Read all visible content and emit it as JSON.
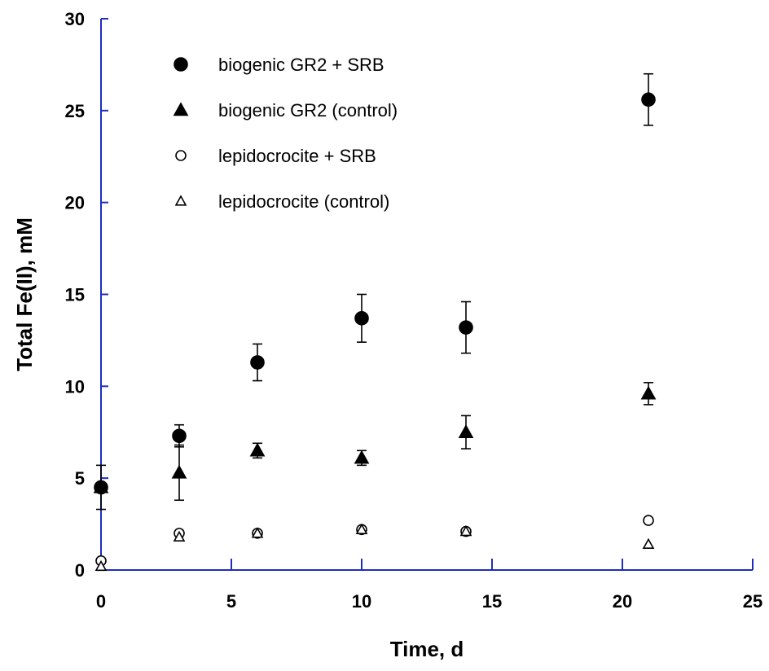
{
  "chart_data": {
    "type": "scatter",
    "xlabel": "Time, d",
    "ylabel": "Total Fe(II), mM",
    "xlim": [
      0,
      25
    ],
    "ylim": [
      0,
      30
    ],
    "xticks": [
      0,
      5,
      10,
      15,
      20,
      25
    ],
    "yticks": [
      0,
      5,
      10,
      15,
      20,
      25,
      30
    ],
    "grid": false,
    "legend_position": "top-left",
    "series": [
      {
        "name": "biogenic GR2 + SRB",
        "marker": "circle-filled",
        "points": [
          {
            "x": 0,
            "y": 4.5,
            "err": 1.2
          },
          {
            "x": 3,
            "y": 7.3,
            "err": 0.6
          },
          {
            "x": 6,
            "y": 11.3,
            "err": 1.0
          },
          {
            "x": 10,
            "y": 13.7,
            "err": 1.3
          },
          {
            "x": 14,
            "y": 13.2,
            "err": 1.4
          },
          {
            "x": 21,
            "y": 25.6,
            "err": 1.4
          }
        ]
      },
      {
        "name": "biogenic GR2 (control)",
        "marker": "triangle-filled",
        "points": [
          {
            "x": 0,
            "y": 4.5,
            "err": 0
          },
          {
            "x": 3,
            "y": 5.3,
            "err": 1.5
          },
          {
            "x": 6,
            "y": 6.5,
            "err": 0.4
          },
          {
            "x": 10,
            "y": 6.1,
            "err": 0.4
          },
          {
            "x": 14,
            "y": 7.5,
            "err": 0.9
          },
          {
            "x": 21,
            "y": 9.6,
            "err": 0.6
          }
        ]
      },
      {
        "name": "lepidocrocite + SRB",
        "marker": "circle-open",
        "points": [
          {
            "x": 0,
            "y": 0.5,
            "err": 0
          },
          {
            "x": 3,
            "y": 2.0,
            "err": 0
          },
          {
            "x": 6,
            "y": 2.0,
            "err": 0
          },
          {
            "x": 10,
            "y": 2.2,
            "err": 0
          },
          {
            "x": 14,
            "y": 2.1,
            "err": 0
          },
          {
            "x": 21,
            "y": 2.7,
            "err": 0
          }
        ]
      },
      {
        "name": "lepidocrocite (control)",
        "marker": "triangle-open",
        "points": [
          {
            "x": 0,
            "y": 0.2,
            "err": 0
          },
          {
            "x": 3,
            "y": 1.8,
            "err": 0
          },
          {
            "x": 6,
            "y": 2.0,
            "err": 0
          },
          {
            "x": 10,
            "y": 2.2,
            "err": 0
          },
          {
            "x": 14,
            "y": 2.1,
            "err": 0
          },
          {
            "x": 21,
            "y": 1.4,
            "err": 0
          }
        ]
      }
    ]
  }
}
